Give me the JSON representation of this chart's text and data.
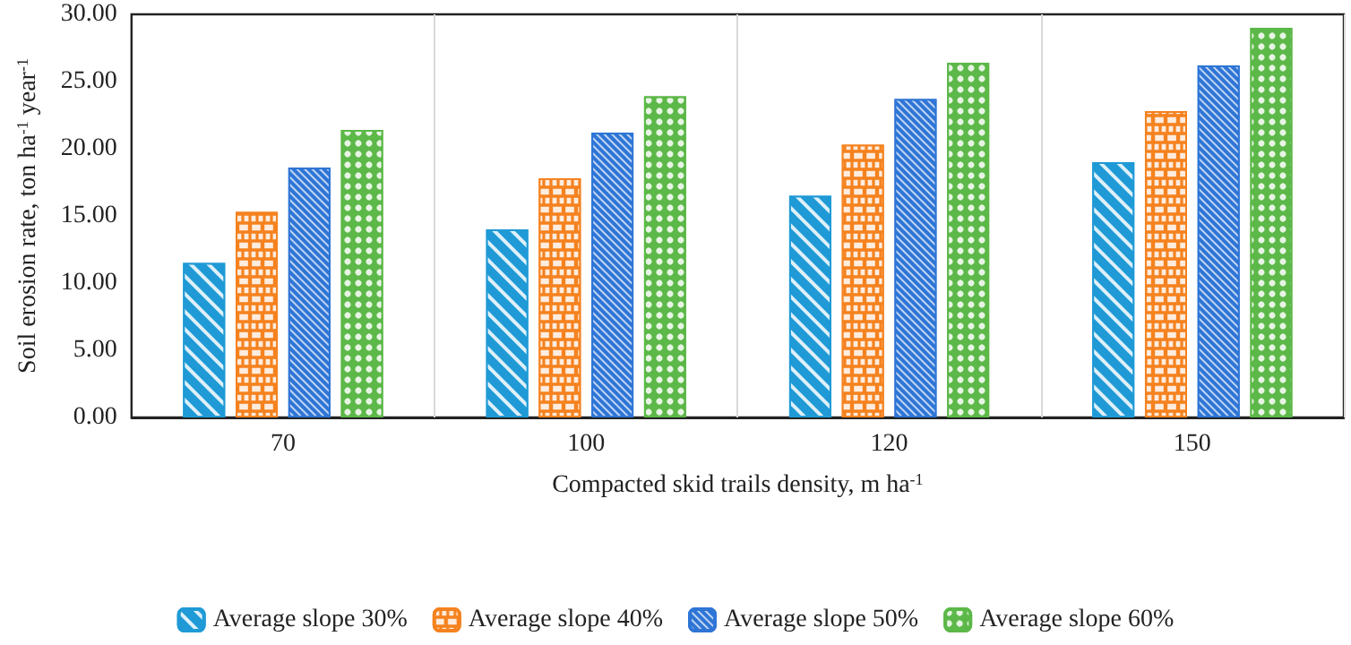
{
  "chart_data": {
    "type": "bar",
    "xlabel": "Compacted skid trails density, m ha$^{-1}$",
    "ylabel": "Soil erosion rate, ton ha$^{-1}$ year$^{-1}$",
    "categories": [
      "70",
      "100",
      "120",
      "150"
    ],
    "series": [
      {
        "name": "Average slope 30%",
        "color": "#1f9ad6",
        "values": [
          11.5,
          14.0,
          16.5,
          19.0
        ]
      },
      {
        "name": "Average slope 40%",
        "color": "#f5821f",
        "values": [
          15.3,
          17.8,
          20.3,
          22.8
        ]
      },
      {
        "name": "Average slope 50%",
        "color": "#2e75d6",
        "values": [
          18.6,
          21.2,
          23.7,
          26.2
        ]
      },
      {
        "name": "Average slope 60%",
        "color": "#5cb848",
        "values": [
          21.4,
          23.9,
          26.4,
          29.0
        ]
      }
    ],
    "ylim": [
      0,
      30
    ],
    "yticks": [
      {
        "value": 0,
        "label": "0.00"
      },
      {
        "value": 5,
        "label": "5.00"
      },
      {
        "value": 10,
        "label": "10.00"
      },
      {
        "value": 15,
        "label": "15.00"
      },
      {
        "value": 20,
        "label": "20.00"
      },
      {
        "value": 25,
        "label": "25.00"
      },
      {
        "value": 30,
        "label": "30.00"
      }
    ],
    "grid": "x",
    "legend": "bottom"
  }
}
